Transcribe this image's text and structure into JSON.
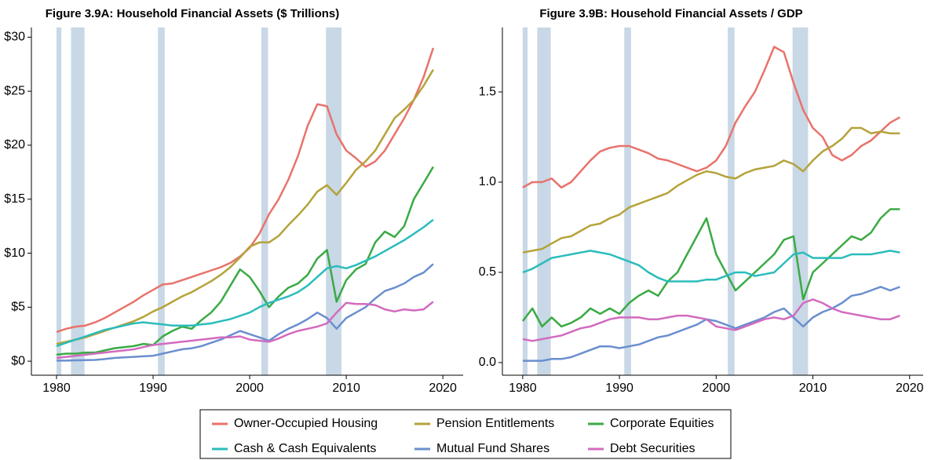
{
  "legend": {
    "entries": [
      {
        "name": "Owner-Occupied Housing",
        "color": "#e8736c"
      },
      {
        "name": "Pension Entitlements",
        "color": "#b5a33a"
      },
      {
        "name": "Corporate Equities",
        "color": "#3aaa45"
      },
      {
        "name": "Cash & Cash Equivalents",
        "color": "#2bbcbc"
      },
      {
        "name": "Mutual Fund Shares",
        "color": "#6a8fcf"
      },
      {
        "name": "Debt Securities",
        "color": "#d26bbf"
      }
    ]
  },
  "chart_data": [
    {
      "type": "line",
      "title": "Figure 3.9A: Household Financial Assets ($ Trillions)",
      "recession_color": "#c8d8e6",
      "recessions": [
        [
          1980.0,
          1980.5
        ],
        [
          1981.5,
          1982.9
        ],
        [
          1990.5,
          1991.2
        ],
        [
          2001.2,
          2001.9
        ],
        [
          2007.9,
          2009.5
        ]
      ],
      "x": [
        1980,
        1981,
        1982,
        1983,
        1984,
        1985,
        1986,
        1987,
        1988,
        1989,
        1990,
        1991,
        1992,
        1993,
        1994,
        1995,
        1996,
        1997,
        1998,
        1999,
        2000,
        2001,
        2002,
        2003,
        2004,
        2005,
        2006,
        2007,
        2008,
        2009,
        2010,
        2011,
        2012,
        2013,
        2014,
        2015,
        2016,
        2017,
        2018,
        2019
      ],
      "xlim": [
        1977.4,
        2022.1
      ],
      "xticks": [
        1980,
        1990,
        2000,
        2010,
        2020
      ],
      "ylim": [
        -1.3,
        30.9
      ],
      "yticks": [
        {
          "value": 0,
          "label": "$0"
        },
        {
          "value": 5,
          "label": "$5"
        },
        {
          "value": 10,
          "label": "$10"
        },
        {
          "value": 15,
          "label": "$15"
        },
        {
          "value": 20,
          "label": "$20"
        },
        {
          "value": 25,
          "label": "$25"
        },
        {
          "value": 30,
          "label": "$30"
        }
      ],
      "series": [
        {
          "values": [
            2.7,
            3.0,
            3.2,
            3.3,
            3.6,
            4.0,
            4.5,
            5.0,
            5.5,
            6.1,
            6.6,
            7.1,
            7.2,
            7.5,
            7.8,
            8.1,
            8.4,
            8.7,
            9.1,
            9.7,
            10.5,
            11.8,
            13.6,
            15.0,
            16.8,
            19.0,
            21.8,
            23.8,
            23.6,
            21.0,
            19.5,
            18.8,
            18.0,
            18.5,
            19.5,
            21.0,
            22.5,
            24.2,
            26.3,
            29.0
          ]
        },
        {
          "values": [
            1.6,
            1.8,
            2.0,
            2.2,
            2.5,
            2.8,
            3.1,
            3.4,
            3.7,
            4.1,
            4.6,
            5.0,
            5.5,
            6.0,
            6.4,
            6.9,
            7.4,
            8.0,
            8.7,
            9.6,
            10.6,
            11.0,
            11.0,
            11.6,
            12.6,
            13.5,
            14.5,
            15.7,
            16.3,
            15.4,
            16.5,
            17.7,
            18.5,
            19.5,
            21.0,
            22.5,
            23.3,
            24.2,
            25.5,
            27.0
          ]
        },
        {
          "values": [
            0.6,
            0.7,
            0.7,
            0.8,
            0.8,
            1.0,
            1.2,
            1.3,
            1.4,
            1.6,
            1.5,
            2.3,
            2.8,
            3.2,
            3.0,
            3.8,
            4.5,
            5.5,
            7.0,
            8.5,
            7.8,
            6.5,
            5.0,
            6.0,
            6.8,
            7.2,
            8.0,
            9.5,
            10.3,
            5.5,
            7.5,
            8.5,
            9.0,
            11.0,
            12.0,
            11.5,
            12.5,
            15.0,
            16.5,
            18.0
          ]
        },
        {
          "values": [
            1.4,
            1.7,
            2.0,
            2.3,
            2.6,
            2.9,
            3.1,
            3.3,
            3.5,
            3.6,
            3.5,
            3.4,
            3.3,
            3.3,
            3.3,
            3.4,
            3.5,
            3.7,
            3.9,
            4.2,
            4.5,
            5.0,
            5.4,
            5.7,
            6.0,
            6.4,
            7.0,
            7.8,
            8.6,
            8.8,
            8.6,
            8.9,
            9.3,
            9.7,
            10.2,
            10.7,
            11.2,
            11.8,
            12.4,
            13.1
          ]
        },
        {
          "values": [
            0.05,
            0.05,
            0.08,
            0.1,
            0.12,
            0.2,
            0.3,
            0.35,
            0.4,
            0.45,
            0.5,
            0.7,
            0.9,
            1.1,
            1.2,
            1.4,
            1.7,
            2.0,
            2.4,
            2.8,
            2.5,
            2.2,
            1.9,
            2.5,
            3.0,
            3.4,
            3.9,
            4.5,
            4.0,
            3.0,
            4.0,
            4.5,
            5.0,
            5.8,
            6.5,
            6.8,
            7.2,
            7.8,
            8.2,
            9.0
          ]
        },
        {
          "values": [
            0.3,
            0.4,
            0.5,
            0.6,
            0.7,
            0.8,
            0.9,
            1.0,
            1.1,
            1.3,
            1.5,
            1.6,
            1.7,
            1.8,
            1.9,
            2.0,
            2.1,
            2.2,
            2.2,
            2.3,
            2.0,
            1.9,
            1.8,
            2.1,
            2.5,
            2.8,
            3.0,
            3.2,
            3.5,
            4.5,
            5.4,
            5.3,
            5.3,
            5.2,
            4.8,
            4.6,
            4.8,
            4.7,
            4.8,
            5.5
          ]
        }
      ]
    },
    {
      "type": "line",
      "title": "Figure 3.9B: Household Financial Assets / GDP",
      "recession_color": "#c8d8e6",
      "recessions": [
        [
          1980.0,
          1980.5
        ],
        [
          1981.5,
          1982.9
        ],
        [
          1990.5,
          1991.2
        ],
        [
          2001.2,
          2001.9
        ],
        [
          2007.9,
          2009.5
        ]
      ],
      "x": [
        1980,
        1981,
        1982,
        1983,
        1984,
        1985,
        1986,
        1987,
        1988,
        1989,
        1990,
        1991,
        1992,
        1993,
        1994,
        1995,
        1996,
        1997,
        1998,
        1999,
        2000,
        2001,
        2002,
        2003,
        2004,
        2005,
        2006,
        2007,
        2008,
        2009,
        2010,
        2011,
        2012,
        2013,
        2014,
        2015,
        2016,
        2017,
        2018,
        2019
      ],
      "xlim": [
        1977.9,
        2021.4
      ],
      "xticks": [
        1980,
        1990,
        2000,
        2010,
        2020
      ],
      "ylim": [
        -0.07,
        1.857
      ],
      "yticks": [
        {
          "value": 0,
          "label": "0.0"
        },
        0.5,
        {
          "value": 1,
          "label": "1.0"
        },
        1.5
      ],
      "series": [
        {
          "values": [
            0.97,
            1.0,
            1.0,
            1.02,
            0.97,
            1.0,
            1.06,
            1.12,
            1.17,
            1.19,
            1.2,
            1.2,
            1.18,
            1.16,
            1.13,
            1.12,
            1.1,
            1.08,
            1.06,
            1.08,
            1.12,
            1.2,
            1.33,
            1.42,
            1.5,
            1.62,
            1.75,
            1.72,
            1.55,
            1.4,
            1.3,
            1.25,
            1.15,
            1.12,
            1.15,
            1.2,
            1.23,
            1.28,
            1.33,
            1.36
          ]
        },
        {
          "values": [
            0.61,
            0.62,
            0.63,
            0.66,
            0.69,
            0.7,
            0.73,
            0.76,
            0.77,
            0.8,
            0.82,
            0.86,
            0.88,
            0.9,
            0.92,
            0.94,
            0.98,
            1.01,
            1.04,
            1.06,
            1.05,
            1.03,
            1.02,
            1.05,
            1.07,
            1.08,
            1.09,
            1.12,
            1.1,
            1.06,
            1.12,
            1.17,
            1.2,
            1.24,
            1.3,
            1.3,
            1.27,
            1.28,
            1.27,
            1.27
          ]
        },
        {
          "values": [
            0.23,
            0.3,
            0.2,
            0.25,
            0.2,
            0.22,
            0.25,
            0.3,
            0.27,
            0.3,
            0.27,
            0.33,
            0.37,
            0.4,
            0.37,
            0.45,
            0.5,
            0.6,
            0.7,
            0.8,
            0.6,
            0.5,
            0.4,
            0.45,
            0.5,
            0.55,
            0.6,
            0.68,
            0.7,
            0.35,
            0.5,
            0.55,
            0.6,
            0.65,
            0.7,
            0.68,
            0.72,
            0.8,
            0.85,
            0.85
          ]
        },
        {
          "values": [
            0.5,
            0.52,
            0.55,
            0.58,
            0.59,
            0.6,
            0.61,
            0.62,
            0.61,
            0.6,
            0.58,
            0.56,
            0.54,
            0.5,
            0.47,
            0.45,
            0.45,
            0.45,
            0.45,
            0.46,
            0.46,
            0.48,
            0.5,
            0.5,
            0.48,
            0.49,
            0.5,
            0.55,
            0.6,
            0.61,
            0.58,
            0.58,
            0.58,
            0.58,
            0.6,
            0.6,
            0.6,
            0.61,
            0.62,
            0.61
          ]
        },
        {
          "values": [
            0.01,
            0.01,
            0.01,
            0.02,
            0.02,
            0.03,
            0.05,
            0.07,
            0.09,
            0.09,
            0.08,
            0.09,
            0.1,
            0.12,
            0.14,
            0.15,
            0.17,
            0.19,
            0.21,
            0.24,
            0.23,
            0.21,
            0.19,
            0.21,
            0.23,
            0.25,
            0.28,
            0.3,
            0.25,
            0.2,
            0.25,
            0.28,
            0.3,
            0.33,
            0.37,
            0.38,
            0.4,
            0.42,
            0.4,
            0.42
          ]
        },
        {
          "values": [
            0.13,
            0.12,
            0.13,
            0.14,
            0.15,
            0.17,
            0.19,
            0.2,
            0.22,
            0.24,
            0.25,
            0.25,
            0.25,
            0.24,
            0.24,
            0.25,
            0.26,
            0.26,
            0.25,
            0.24,
            0.2,
            0.19,
            0.18,
            0.2,
            0.22,
            0.24,
            0.25,
            0.24,
            0.26,
            0.33,
            0.35,
            0.33,
            0.3,
            0.28,
            0.27,
            0.26,
            0.25,
            0.24,
            0.24,
            0.26
          ]
        }
      ]
    }
  ]
}
